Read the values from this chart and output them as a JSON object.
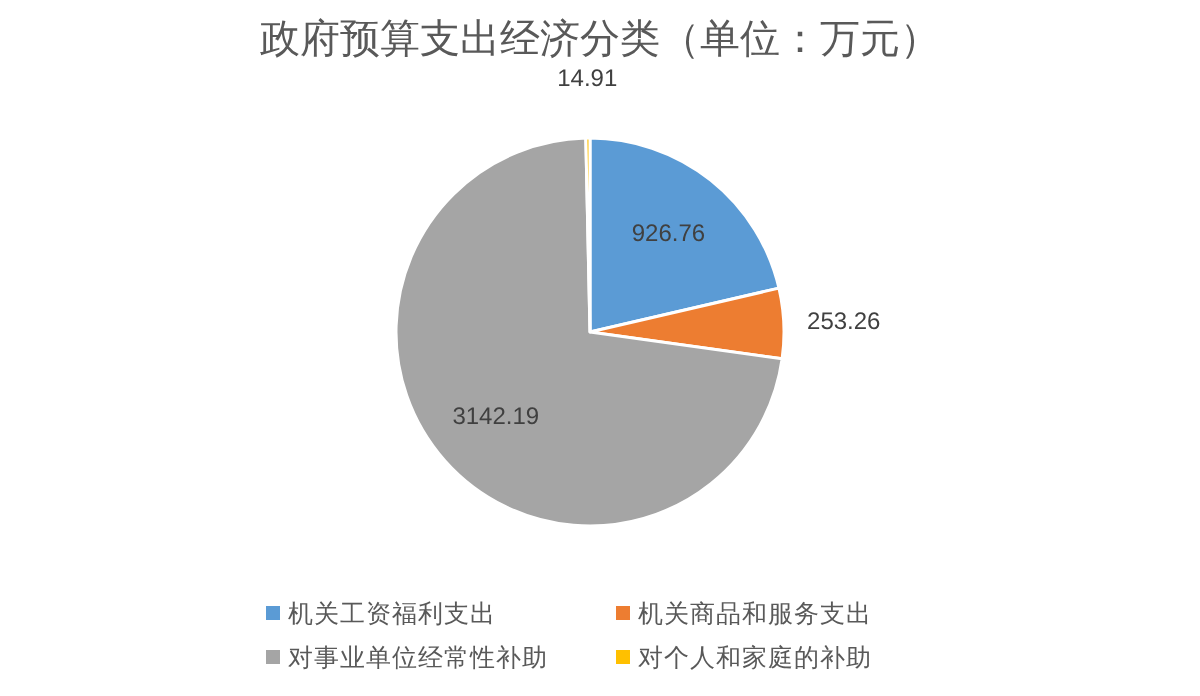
{
  "chart_data": {
    "type": "pie",
    "title": "政府预算支出经济分类（单位：万元）",
    "categories": [
      "机关工资福利支出",
      "机关商品和服务支出",
      "对事业单位经常性补助",
      "对个人和家庭的补助"
    ],
    "values": [
      926.76,
      253.26,
      3142.19,
      14.91
    ],
    "colors": [
      "#5b9bd5",
      "#ed7d31",
      "#a5a5a5",
      "#ffc000"
    ],
    "data_labels": true,
    "legend": "bottom"
  }
}
